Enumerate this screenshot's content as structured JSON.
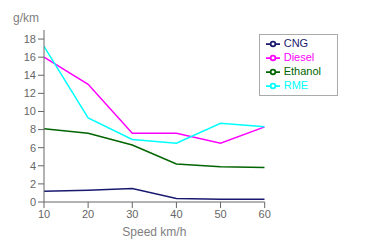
{
  "chart_data": {
    "type": "line",
    "xlabel": "Speed km/h",
    "ylabel": "g/km",
    "x": [
      10,
      20,
      30,
      40,
      50,
      60
    ],
    "series": [
      {
        "name": "CNG",
        "color": "#191970",
        "values": [
          1.2,
          1.3,
          1.5,
          0.4,
          0.3,
          0.3
        ]
      },
      {
        "name": "Diesel",
        "color": "#FF00FF",
        "values": [
          16.0,
          13.0,
          7.6,
          7.6,
          6.5,
          8.3
        ]
      },
      {
        "name": "Ethanol",
        "color": "#006400",
        "values": [
          8.1,
          7.6,
          6.3,
          4.2,
          3.9,
          3.8
        ]
      },
      {
        "name": "RME",
        "color": "#00FFFF",
        "values": [
          17.2,
          9.3,
          6.9,
          6.5,
          8.7,
          8.3
        ]
      }
    ],
    "xlim": [
      10,
      60
    ],
    "ylim": [
      0,
      19
    ],
    "xticks": [
      10,
      20,
      30,
      40,
      50,
      60
    ],
    "yticks": [
      0,
      2,
      4,
      6,
      8,
      10,
      12,
      14,
      16,
      18
    ],
    "legend": "upper right",
    "grid": false
  }
}
